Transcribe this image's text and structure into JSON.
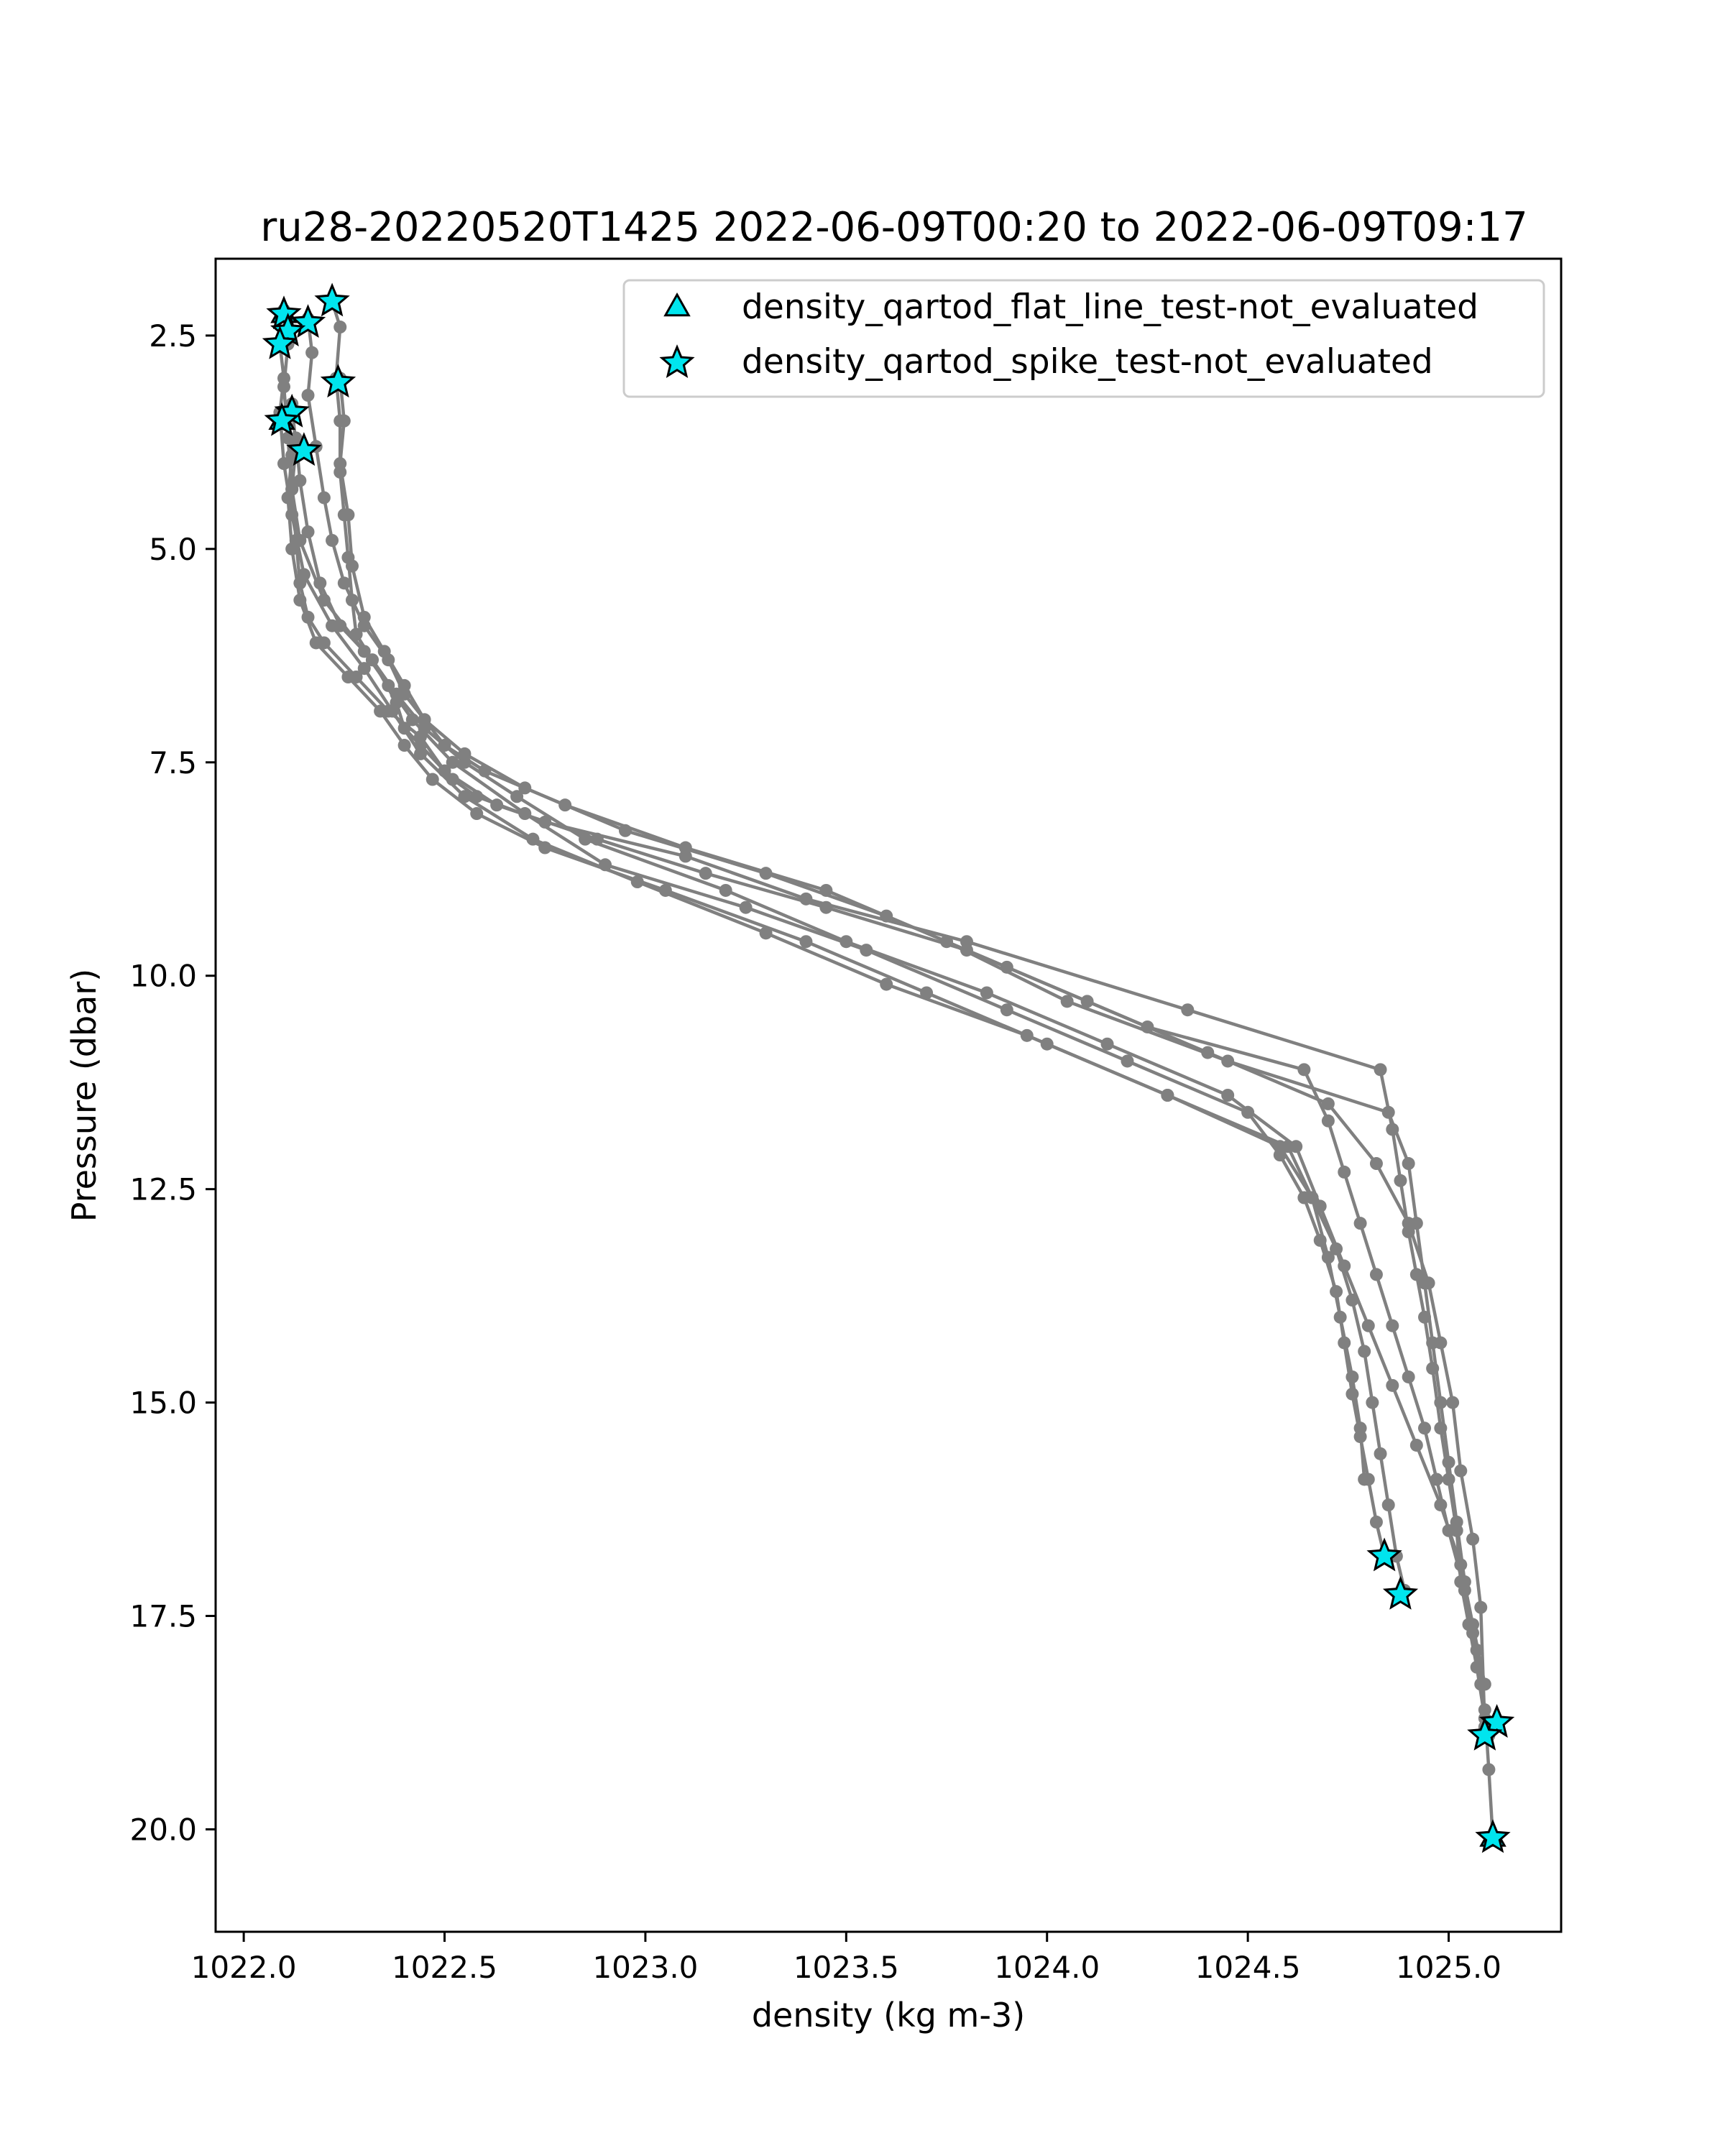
{
  "chart_data": {
    "type": "scatter",
    "title": "ru28-20220520T1425 2022-06-09T00:20 to 2022-06-09T09:17",
    "xlabel": "density (kg m-3)",
    "ylabel": "Pressure (dbar)",
    "xlim": [
      1021.93,
      1025.28
    ],
    "ylim": [
      21.2,
      1.6
    ],
    "y_inverted": true,
    "x_ticks": [
      "1022.0",
      "1022.5",
      "1023.0",
      "1023.5",
      "1024.0",
      "1024.5",
      "1025.0"
    ],
    "y_ticks": [
      "2.5",
      "5.0",
      "7.5",
      "10.0",
      "12.5",
      "15.0",
      "17.5",
      "20.0"
    ],
    "legend_position": "top-right",
    "colors": {
      "profile": "#808080",
      "marker": "#00e5ee",
      "marker_edge": "#000000"
    },
    "legend": [
      {
        "label": "density_qartod_flat_line_test-not_evaluated",
        "marker": "triangle"
      },
      {
        "label": "density_qartod_spike_test-not_evaluated",
        "marker": "star"
      }
    ],
    "series": [
      {
        "x": [
          1022.22,
          1022.24,
          1022.23,
          1022.24,
          1022.24,
          1022.25,
          1022.26,
          1022.27,
          1022.28,
          1022.32,
          1022.38,
          1022.4,
          1022.44,
          1022.52,
          1022.58,
          1022.75,
          1023.1,
          1023.4,
          1023.8,
          1024.35,
          1024.83,
          1024.86,
          1024.88,
          1024.9,
          1024.92,
          1024.94,
          1024.96,
          1024.98,
          1025.0,
          1025.02,
          1025.03,
          1025.05,
          1025.07,
          1025.09
        ],
        "y": [
          2.1,
          2.4,
          3.0,
          3.5,
          4.1,
          4.6,
          5.1,
          5.6,
          6.0,
          6.3,
          6.8,
          7.1,
          7.3,
          7.7,
          7.9,
          8.2,
          8.6,
          9.1,
          9.6,
          10.4,
          11.1,
          11.8,
          12.4,
          13.0,
          13.5,
          14.0,
          14.6,
          15.3,
          15.9,
          16.5,
          17.1,
          17.6,
          18.1,
          18.7
        ]
      },
      {
        "x": [
          1022.16,
          1022.17,
          1022.16,
          1022.18,
          1022.2,
          1022.22,
          1022.25,
          1022.3,
          1022.36,
          1022.4,
          1022.45,
          1022.55,
          1022.7,
          1022.95,
          1023.3,
          1023.6,
          1023.9,
          1024.25,
          1024.64,
          1024.7,
          1024.74,
          1024.78,
          1024.82,
          1024.86,
          1024.9,
          1024.94,
          1024.97,
          1025.0,
          1025.04,
          1025.07,
          1025.09,
          1025.1,
          1025.11
        ],
        "y": [
          2.3,
          2.7,
          3.2,
          3.8,
          4.4,
          4.9,
          5.4,
          5.9,
          6.3,
          6.7,
          7.0,
          7.4,
          7.8,
          8.3,
          8.8,
          9.3,
          9.9,
          10.6,
          11.1,
          11.7,
          12.3,
          12.9,
          13.5,
          14.1,
          14.7,
          15.3,
          15.9,
          16.5,
          17.2,
          17.9,
          18.6,
          19.3,
          20.1
        ]
      },
      {
        "x": [
          1022.24,
          1022.25,
          1022.24,
          1022.26,
          1022.27,
          1022.3,
          1022.35,
          1022.4,
          1022.45,
          1022.5,
          1022.6,
          1022.8,
          1023.1,
          1023.45,
          1023.75,
          1024.05,
          1024.45,
          1024.85,
          1024.9,
          1024.92,
          1024.94,
          1024.96,
          1024.98,
          1025.0,
          1025.02,
          1025.04,
          1025.06,
          1025.08,
          1025.1
        ],
        "y": [
          3.0,
          3.5,
          4.0,
          4.6,
          5.2,
          5.8,
          6.2,
          6.6,
          7.0,
          7.3,
          7.6,
          8.0,
          8.5,
          9.0,
          9.6,
          10.3,
          11.0,
          11.6,
          12.2,
          12.9,
          13.6,
          14.3,
          15.0,
          15.7,
          16.4,
          17.1,
          17.7,
          18.3,
          18.9
        ]
      },
      {
        "x": [
          1022.1,
          1022.11,
          1022.1,
          1022.11,
          1022.12,
          1022.14,
          1022.2,
          1022.3,
          1022.36,
          1022.42,
          1022.52,
          1022.7,
          1022.9,
          1023.25,
          1023.55,
          1023.9,
          1024.2,
          1024.5,
          1024.58,
          1024.64,
          1024.68,
          1024.72,
          1024.74,
          1024.76,
          1024.78,
          1024.8,
          1024.82,
          1024.84
        ],
        "y": [
          2.2,
          2.6,
          3.1,
          3.7,
          4.3,
          4.9,
          5.6,
          6.2,
          6.6,
          7.0,
          7.5,
          8.1,
          8.7,
          9.2,
          9.7,
          10.4,
          11.0,
          11.6,
          12.1,
          12.6,
          13.1,
          13.7,
          14.3,
          14.9,
          15.4,
          15.9,
          16.4,
          16.8
        ]
      },
      {
        "x": [
          1022.09,
          1022.1,
          1022.09,
          1022.1,
          1022.12,
          1022.15,
          1022.22,
          1022.3,
          1022.37,
          1022.44,
          1022.55,
          1022.72,
          1022.98,
          1023.3,
          1023.6,
          1023.95,
          1024.3,
          1024.6,
          1024.66,
          1024.72,
          1024.76,
          1024.79,
          1024.81,
          1024.83,
          1024.85,
          1024.87,
          1024.89
        ],
        "y": [
          2.6,
          3.0,
          3.4,
          4.0,
          4.6,
          5.3,
          5.9,
          6.4,
          6.9,
          7.4,
          7.9,
          8.4,
          8.9,
          9.5,
          10.1,
          10.7,
          11.4,
          12.0,
          12.6,
          13.2,
          13.8,
          14.4,
          15.0,
          15.6,
          16.2,
          16.8,
          17.2
        ]
      },
      {
        "x": [
          1022.12,
          1022.13,
          1022.12,
          1022.13,
          1022.14,
          1022.16,
          1022.2,
          1022.28,
          1022.36,
          1022.44,
          1022.5,
          1022.63,
          1022.88,
          1023.15,
          1023.45,
          1023.8,
          1024.1,
          1024.4,
          1024.7,
          1024.82,
          1024.9,
          1024.95,
          1024.98,
          1025.01,
          1025.03,
          1025.06,
          1025.08,
          1025.09
        ],
        "y": [
          3.3,
          3.8,
          4.3,
          4.9,
          5.4,
          5.8,
          6.1,
          6.5,
          6.9,
          7.2,
          7.6,
          8.0,
          8.4,
          8.8,
          9.2,
          9.7,
          10.3,
          10.9,
          11.5,
          12.2,
          12.9,
          13.6,
          14.3,
          15.0,
          15.8,
          16.6,
          17.4,
          18.8
        ]
      },
      {
        "x": [
          1022.11,
          1022.12,
          1022.11,
          1022.12,
          1022.14,
          1022.18,
          1022.26,
          1022.34,
          1022.4,
          1022.47,
          1022.58,
          1022.75,
          1023.05,
          1023.4,
          1023.7,
          1024.0,
          1024.3,
          1024.58,
          1024.66,
          1024.7,
          1024.73,
          1024.76,
          1024.78,
          1024.79
        ],
        "y": [
          3.4,
          3.9,
          4.4,
          5.0,
          5.6,
          6.1,
          6.5,
          6.9,
          7.3,
          7.7,
          8.1,
          8.5,
          9.0,
          9.6,
          10.2,
          10.8,
          11.4,
          12.0,
          12.6,
          13.3,
          14.0,
          14.7,
          15.3,
          15.9
        ]
      },
      {
        "x": [
          1022.13,
          1022.14,
          1022.16,
          1022.19,
          1022.24,
          1022.32,
          1022.38,
          1022.45,
          1022.55,
          1022.68,
          1022.85,
          1023.2,
          1023.5,
          1023.85,
          1024.15,
          1024.45,
          1024.62,
          1024.68,
          1024.74,
          1024.8,
          1024.86,
          1024.92,
          1024.98,
          1025.03,
          1025.06,
          1025.09
        ],
        "y": [
          3.7,
          4.2,
          4.8,
          5.4,
          5.9,
          6.3,
          6.7,
          7.1,
          7.5,
          7.9,
          8.4,
          9.0,
          9.6,
          10.2,
          10.8,
          11.4,
          12.0,
          12.7,
          13.4,
          14.1,
          14.8,
          15.5,
          16.2,
          16.9,
          17.6,
          18.3
        ]
      }
    ],
    "spike_markers": [
      {
        "x": 1022.22,
        "y": 2.1
      },
      {
        "x": 1022.1,
        "y": 2.25
      },
      {
        "x": 1022.16,
        "y": 2.35
      },
      {
        "x": 1022.11,
        "y": 2.45
      },
      {
        "x": 1022.09,
        "y": 2.6
      },
      {
        "x": 1022.235,
        "y": 3.05
      },
      {
        "x": 1022.12,
        "y": 3.4
      },
      {
        "x": 1022.095,
        "y": 3.5
      },
      {
        "x": 1022.15,
        "y": 3.85
      },
      {
        "x": 1024.84,
        "y": 16.8
      },
      {
        "x": 1024.88,
        "y": 17.25
      },
      {
        "x": 1025.12,
        "y": 18.75
      },
      {
        "x": 1025.09,
        "y": 18.9
      },
      {
        "x": 1025.11,
        "y": 20.1
      }
    ],
    "flat_line_markers": [
      {
        "x": 1022.1,
        "y": 2.25
      },
      {
        "x": 1022.095,
        "y": 3.5
      },
      {
        "x": 1025.11,
        "y": 20.1
      }
    ]
  }
}
